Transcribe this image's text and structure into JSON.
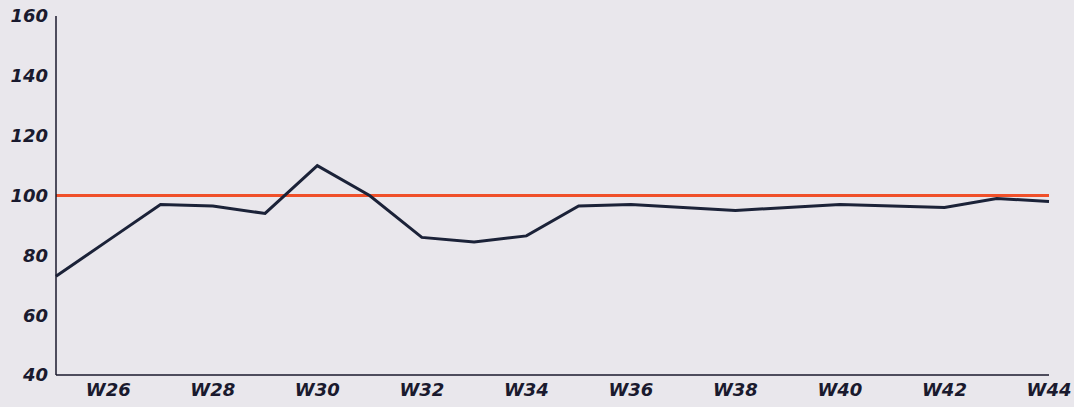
{
  "chart_data": {
    "type": "line",
    "categories": [
      null,
      "W26",
      null,
      "W28",
      null,
      "W30",
      null,
      "W32",
      null,
      "W34",
      null,
      "W36",
      null,
      "W38",
      null,
      "W40",
      null,
      "W42",
      null,
      "W44"
    ],
    "series": [
      {
        "color": "#1b2238",
        "values": [
          73,
          85,
          97,
          96.5,
          94,
          110,
          100,
          86,
          84.5,
          86.5,
          96.5,
          97,
          96,
          95,
          96,
          97,
          96.5,
          96,
          99,
          98
        ]
      },
      {
        "color": "#f0502a",
        "values": [
          100,
          100,
          100,
          100,
          100,
          100,
          100,
          100,
          100,
          100,
          100,
          100,
          100,
          100,
          100,
          100,
          100,
          100,
          100,
          100
        ]
      }
    ],
    "ylim": [
      40,
      160
    ],
    "yticks": [
      40,
      60,
      80,
      100,
      120,
      140,
      160
    ],
    "grid": false
  }
}
